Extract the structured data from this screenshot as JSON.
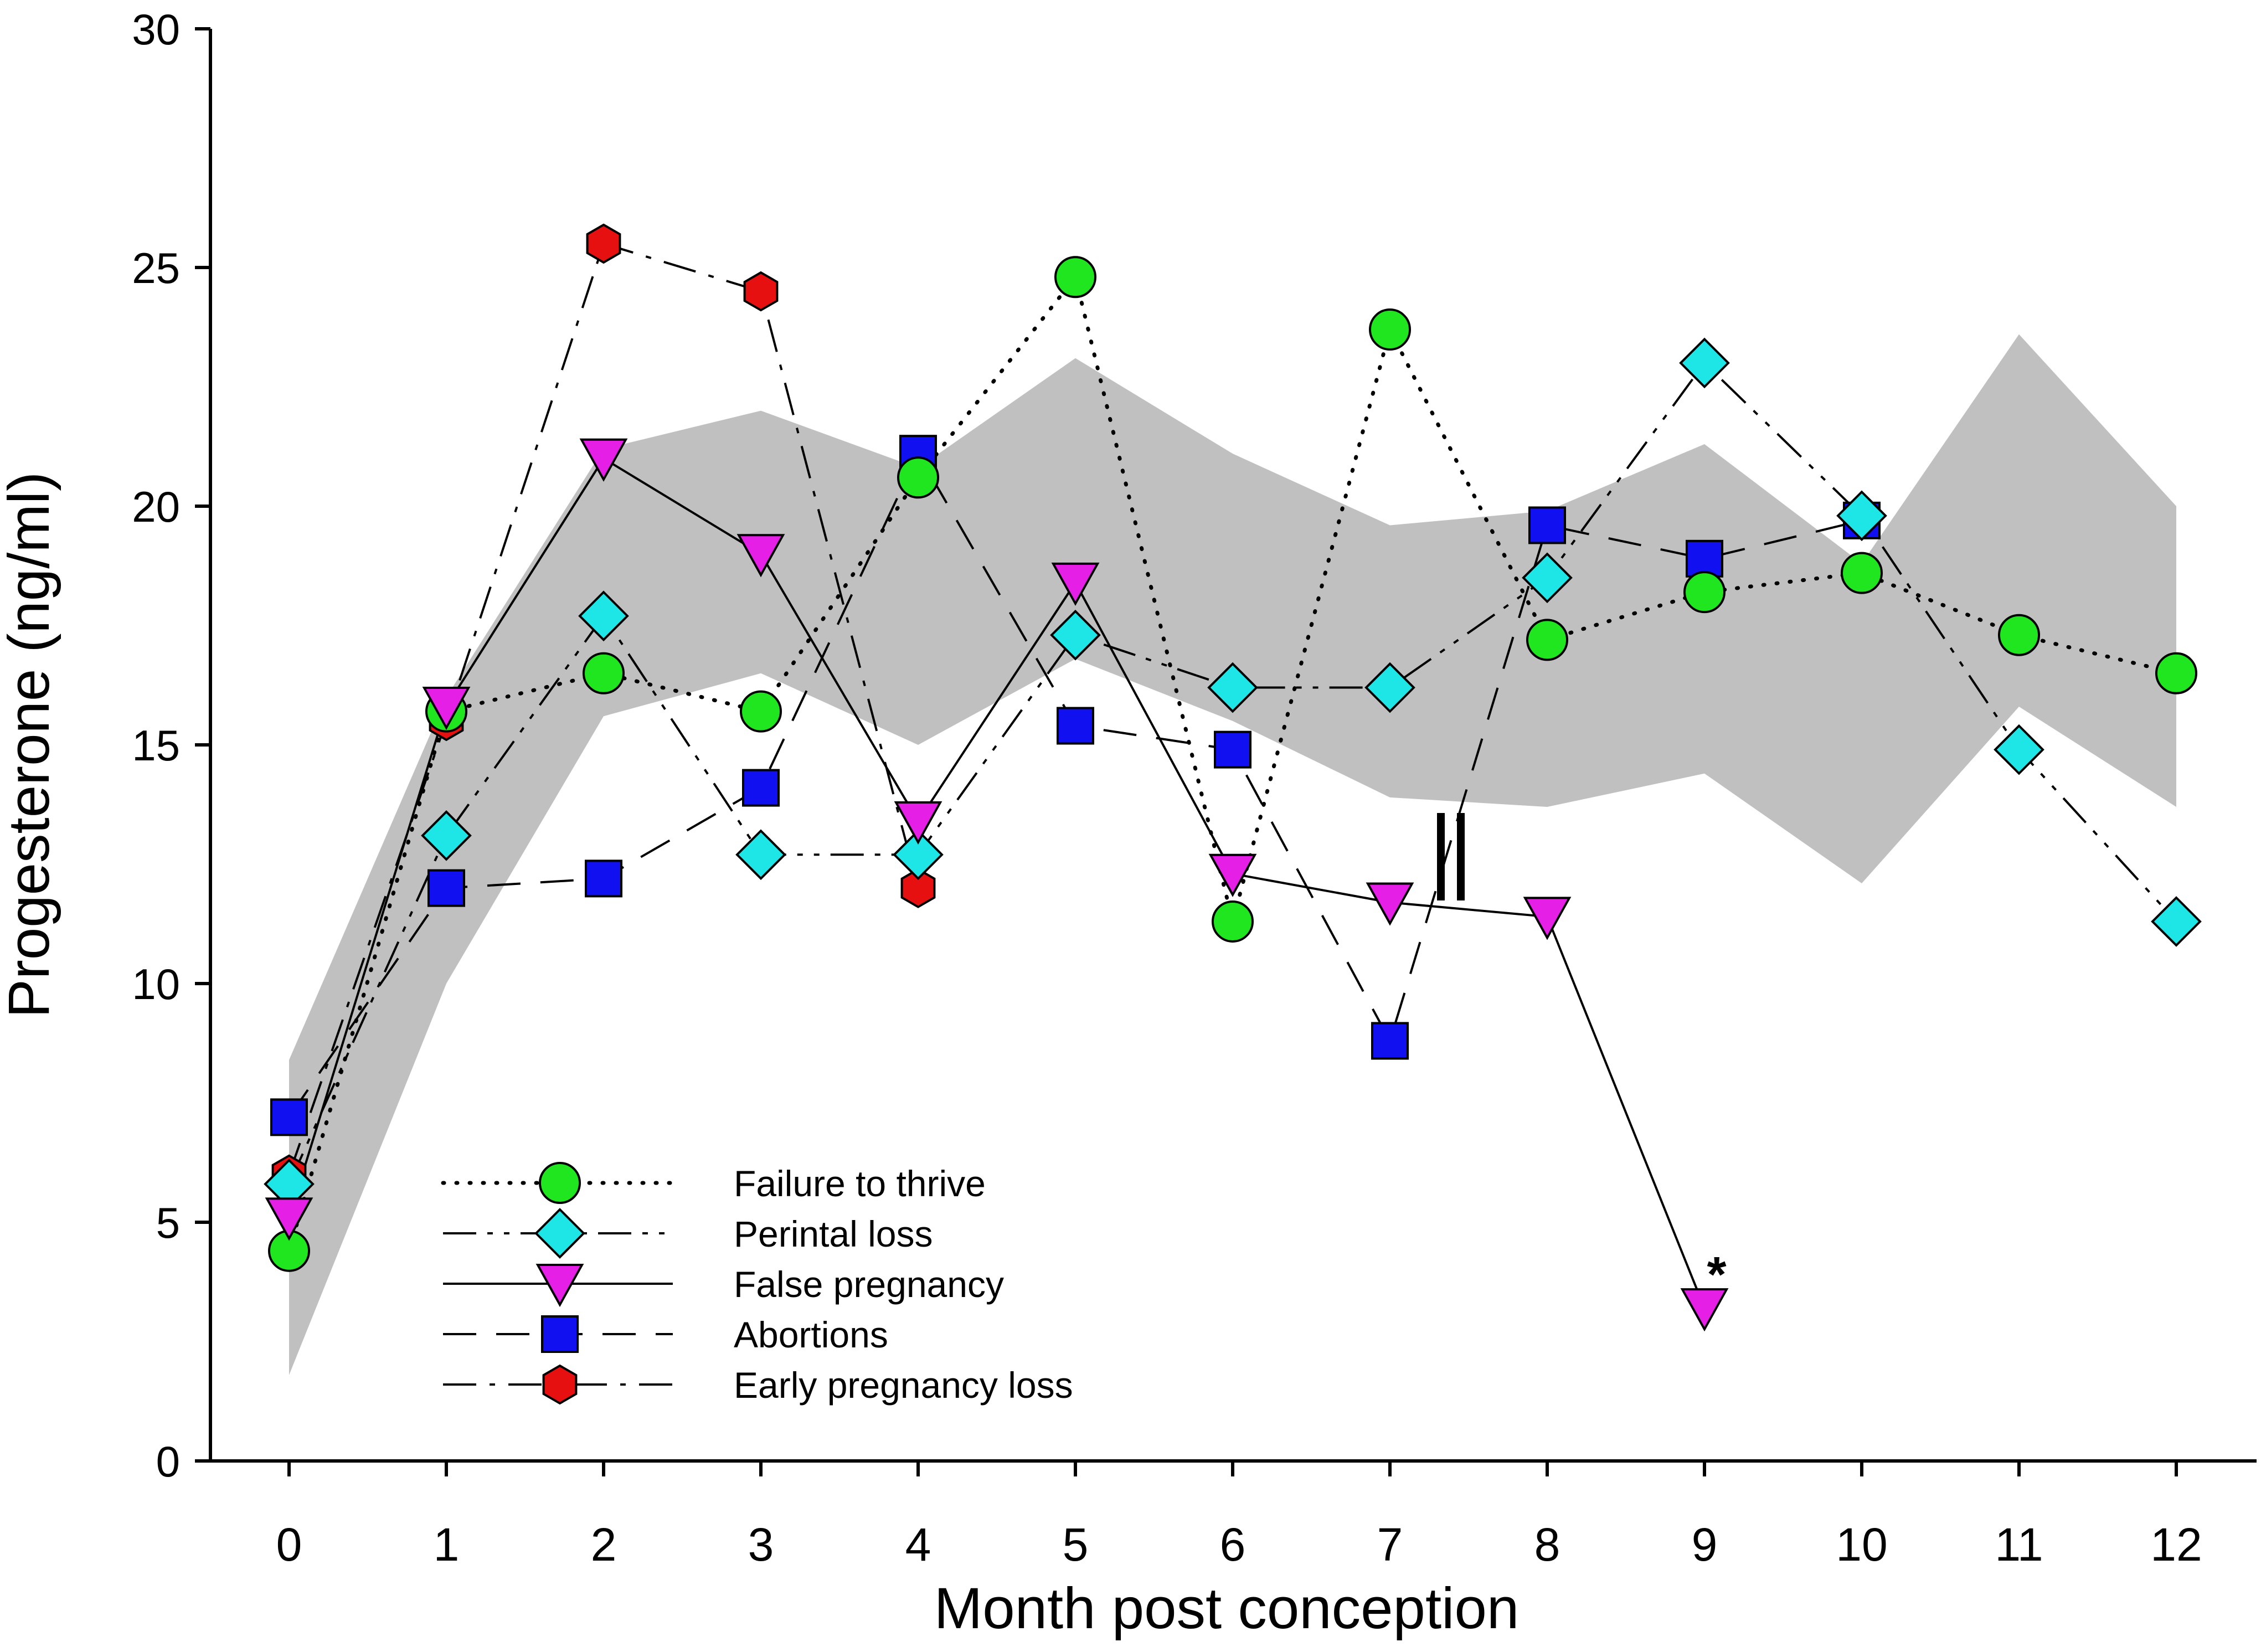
{
  "chart_data": {
    "type": "line",
    "xlabel": "Month post conception",
    "ylabel": "Progesterone (ng/ml)",
    "xlim": [
      -0.5,
      12.5
    ],
    "ylim": [
      0,
      30
    ],
    "xticks": [
      0,
      1,
      2,
      3,
      4,
      5,
      6,
      7,
      8,
      9,
      10,
      11,
      12
    ],
    "yticks": [
      0,
      5,
      10,
      15,
      20,
      25,
      30
    ],
    "legend_position": "bottom-left",
    "reference_band": {
      "x": [
        0,
        1,
        2,
        3,
        4,
        5,
        6,
        7,
        8,
        9,
        10,
        11,
        12
      ],
      "lower": [
        1.8,
        10.0,
        15.6,
        16.5,
        15.0,
        16.8,
        15.5,
        13.9,
        13.7,
        14.4,
        12.1,
        15.8,
        13.7
      ],
      "upper": [
        8.4,
        16.0,
        21.2,
        22.0,
        20.8,
        23.1,
        21.1,
        19.6,
        19.9,
        21.3,
        18.8,
        23.6,
        20.0
      ],
      "color": "#c0c0c0"
    },
    "series": [
      {
        "name": "Failure to thrive",
        "marker": "circle",
        "color": "#1fe61f",
        "line_style": "dotted",
        "points": [
          [
            0,
            4.4
          ],
          [
            1,
            15.7
          ],
          [
            2,
            16.5
          ],
          [
            3,
            15.7
          ],
          [
            4,
            20.6
          ],
          [
            5,
            24.8
          ],
          [
            6,
            11.3
          ],
          [
            7,
            23.7
          ],
          [
            8,
            17.2
          ],
          [
            9,
            18.2
          ],
          [
            10,
            18.6
          ],
          [
            11,
            17.3
          ],
          [
            12,
            16.5
          ]
        ]
      },
      {
        "name": "Perintal loss",
        "marker": "diamond",
        "color": "#1fe6e6",
        "line_style": "dash-dot-dot",
        "points": [
          [
            0,
            5.8
          ],
          [
            1,
            13.1
          ],
          [
            2,
            17.7
          ],
          [
            3,
            12.7
          ],
          [
            4,
            12.7
          ],
          [
            5,
            17.3
          ],
          [
            6,
            16.2
          ],
          [
            7,
            16.2
          ],
          [
            8,
            18.5
          ],
          [
            9,
            23.0
          ],
          [
            10,
            19.8
          ],
          [
            11,
            14.9
          ],
          [
            12,
            11.3
          ]
        ]
      },
      {
        "name": "False pregnancy",
        "marker": "triangle-down",
        "color": "#e61fe6",
        "line_style": "solid",
        "points": [
          [
            0,
            5.1
          ],
          [
            1,
            15.8
          ],
          [
            2,
            21.0
          ],
          [
            3,
            19.0
          ],
          [
            4,
            13.4
          ],
          [
            5,
            18.4
          ],
          [
            6,
            12.3
          ],
          [
            7,
            11.7
          ],
          [
            8,
            11.4
          ],
          [
            9,
            3.2
          ]
        ],
        "annotation": {
          "text": "*",
          "x": 9
        }
      },
      {
        "name": "Abortions",
        "marker": "square",
        "color": "#1010f0",
        "line_style": "dashed",
        "points": [
          [
            0,
            7.2
          ],
          [
            1,
            12.0
          ],
          [
            2,
            12.2
          ],
          [
            3,
            14.1
          ],
          [
            4,
            21.1
          ],
          [
            5,
            15.4
          ],
          [
            6,
            14.9
          ],
          [
            7,
            8.8
          ],
          [
            8,
            19.6
          ],
          [
            9,
            18.9
          ],
          [
            10,
            19.7
          ]
        ]
      },
      {
        "name": "Early pregnancy loss",
        "marker": "hexagon",
        "color": "#e61010",
        "line_style": "dash-dot",
        "points": [
          [
            0,
            6.0
          ],
          [
            1,
            15.5
          ],
          [
            2,
            25.5
          ],
          [
            3,
            24.5
          ],
          [
            4,
            12.0
          ]
        ]
      }
    ]
  }
}
